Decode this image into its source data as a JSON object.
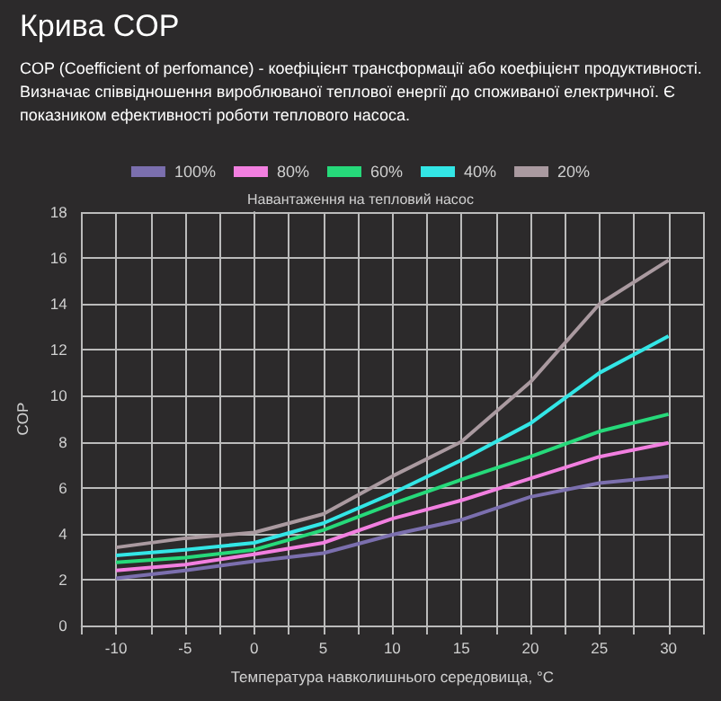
{
  "chart_data": {
    "type": "line",
    "title": "Крива COP",
    "subtitle": "COP (Coefficient of perfomance) - коефіцієнт трансформації або коефіцієнт продуктивності. Визначає співвідношення вироблюваної теплової енергії до споживаної електричної. Є показником ефективності роботи теплового насоса.",
    "legend_title": "Навантаження на тепловий насос",
    "xlabel": "Температура навколишнього середовища, °C",
    "ylabel": "COP",
    "x": [
      -10,
      -5,
      0,
      5,
      10,
      15,
      20,
      25,
      30
    ],
    "series": [
      {
        "name": "100%",
        "color": "#7b6fae",
        "values": [
          2.05,
          2.4,
          2.8,
          3.15,
          3.95,
          4.6,
          5.6,
          6.2,
          6.5
        ]
      },
      {
        "name": "80%",
        "color": "#f27fe0",
        "values": [
          2.4,
          2.65,
          3.1,
          3.6,
          4.65,
          5.45,
          6.4,
          7.35,
          7.95
        ]
      },
      {
        "name": "60%",
        "color": "#26d97a",
        "values": [
          2.75,
          2.95,
          3.3,
          4.15,
          5.3,
          6.35,
          7.35,
          8.45,
          9.2
        ]
      },
      {
        "name": "40%",
        "color": "#33e6e6",
        "values": [
          3.05,
          3.3,
          3.6,
          4.45,
          5.75,
          7.2,
          8.8,
          11.0,
          12.6
        ]
      },
      {
        "name": "20%",
        "color": "#aa9aa0",
        "values": [
          3.4,
          3.8,
          4.05,
          4.85,
          6.5,
          8.0,
          10.6,
          14.0,
          15.9
        ]
      }
    ],
    "xlim": [
      -12.5,
      32.5
    ],
    "xticks": [
      {
        "value": -12.5,
        "label": null
      },
      -10,
      {
        "value": -7.5,
        "label": null
      },
      -5,
      {
        "value": -2.5,
        "label": null
      },
      0,
      {
        "value": 2.5,
        "label": null
      },
      5,
      {
        "value": 7.5,
        "label": null
      },
      10,
      {
        "value": 12.5,
        "label": null
      },
      15,
      {
        "value": 17.5,
        "label": null
      },
      20,
      {
        "value": 22.5,
        "label": null
      },
      25,
      {
        "value": 27.5,
        "label": null
      },
      30,
      {
        "value": 32.5,
        "label": null
      }
    ],
    "ylim": [
      0,
      18
    ],
    "yticks": [
      0,
      2,
      4,
      6,
      8,
      10,
      12,
      14,
      16,
      18
    ],
    "grid": true,
    "legend": "top",
    "marker": "none",
    "line_style": "solid"
  }
}
